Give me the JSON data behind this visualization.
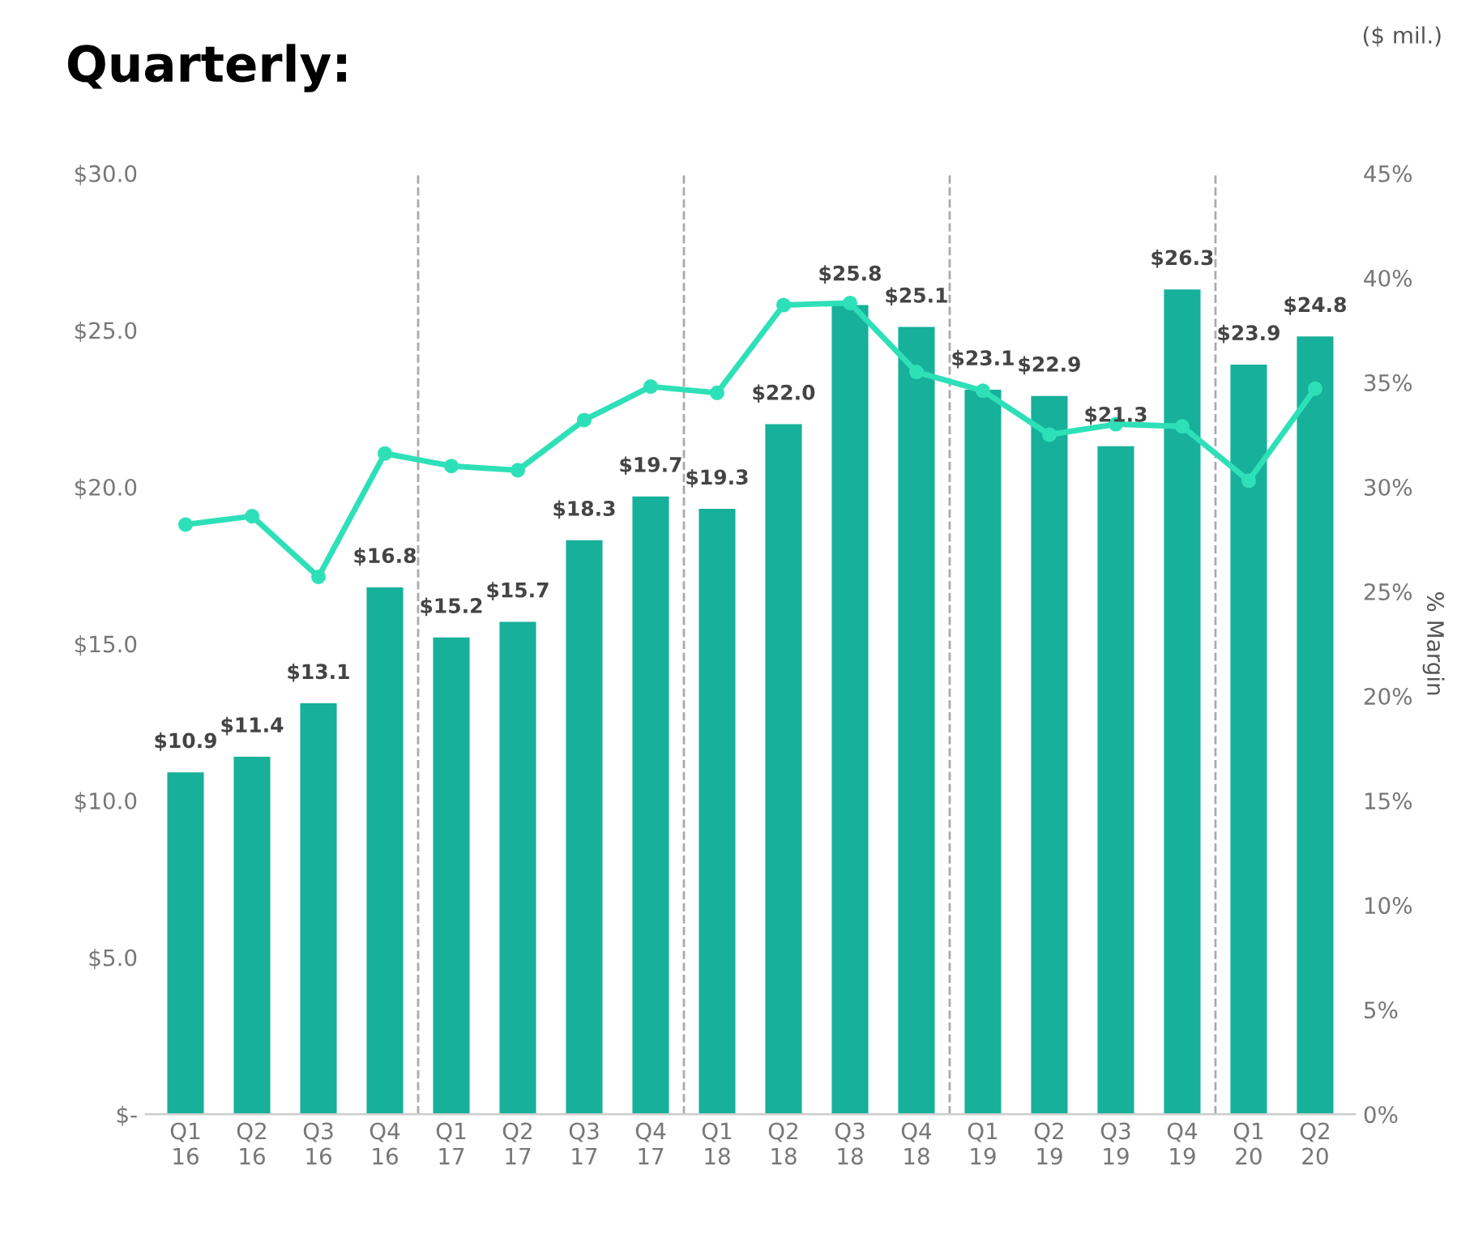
{
  "chart_data": {
    "type": "bar",
    "title": "Quarterly:",
    "y2label": "% Margin",
    "annotations": [
      "($ mil.)"
    ],
    "categories": [
      "Q1\n16",
      "Q2\n16",
      "Q3\n16",
      "Q4\n16",
      "Q1\n17",
      "Q2\n17",
      "Q3\n17",
      "Q4\n17",
      "Q1\n18",
      "Q2\n18",
      "Q3\n18",
      "Q4\n18",
      "Q1\n19",
      "Q2\n19",
      "Q3\n19",
      "Q4\n19",
      "Q1\n20",
      "Q2\n20"
    ],
    "series": [
      {
        "color": "#17b09a",
        "values": [
          10.9,
          11.4,
          13.1,
          16.8,
          15.2,
          15.7,
          18.3,
          19.7,
          19.3,
          22.0,
          25.8,
          25.1,
          23.1,
          22.9,
          21.3,
          26.3,
          23.9,
          24.8
        ],
        "value_labels": [
          "$10.9",
          "$11.4",
          "$13.1",
          "$16.8",
          "$15.2",
          "$15.7",
          "$18.3",
          "$19.7",
          "$19.3",
          "$22.0",
          "$25.8",
          "$25.1",
          "$23.1",
          "$22.9",
          "$21.3",
          "$26.3",
          "$23.9",
          "$24.8"
        ]
      },
      {
        "type": "line",
        "axis": "y2",
        "color": "#2ee0b8",
        "marker": "circle",
        "values": [
          28.2,
          28.6,
          25.7,
          31.6,
          31.0,
          30.8,
          33.2,
          34.8,
          34.5,
          38.7,
          38.8,
          35.5,
          34.6,
          32.5,
          33.0,
          32.9,
          30.3,
          34.7
        ]
      }
    ],
    "ylim": [
      0,
      30
    ],
    "yticks": [
      {
        "value": 0,
        "label": "$-"
      },
      {
        "value": 5,
        "label": "$5.0"
      },
      {
        "value": 10,
        "label": "$10.0"
      },
      {
        "value": 15,
        "label": "$15.0"
      },
      {
        "value": 20,
        "label": "$20.0"
      },
      {
        "value": 25,
        "label": "$25.0"
      },
      {
        "value": 30,
        "label": "$30.0"
      }
    ],
    "y2lim": [
      0,
      45
    ],
    "y2ticks": [
      {
        "value": 0,
        "label": "0%"
      },
      {
        "value": 5,
        "label": "5%"
      },
      {
        "value": 10,
        "label": "10%"
      },
      {
        "value": 15,
        "label": "15%"
      },
      {
        "value": 20,
        "label": "20%"
      },
      {
        "value": 25,
        "label": "25%"
      },
      {
        "value": 30,
        "label": "30%"
      },
      {
        "value": 35,
        "label": "35%"
      },
      {
        "value": 40,
        "label": "40%"
      },
      {
        "value": 45,
        "label": "45%"
      }
    ],
    "grid": false,
    "legend": false
  }
}
